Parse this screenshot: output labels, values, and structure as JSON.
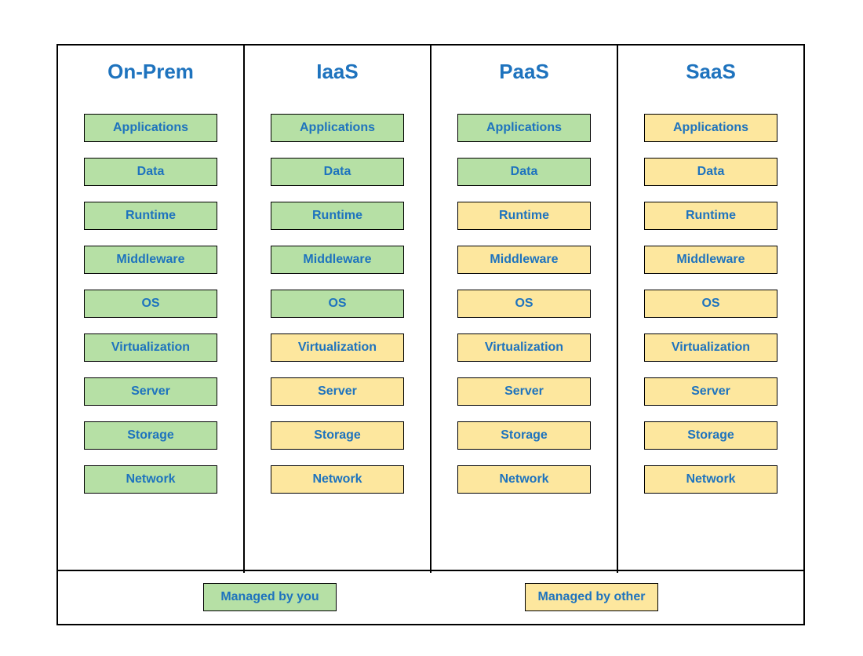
{
  "diagram": {
    "type": "infographic",
    "title_color": "#1e73be",
    "text_color": "#1e73be",
    "box_border_color": "#000000",
    "grid_border_color": "#000000",
    "background_color": "#ffffff",
    "title_fontsize": 26,
    "label_fontsize": 16,
    "colors": {
      "managed_by_you": "#b6e0a5",
      "managed_by_other": "#fde79e"
    },
    "layers": [
      "Applications",
      "Data",
      "Runtime",
      "Middleware",
      "OS",
      "Virtualization",
      "Server",
      "Storage",
      "Network"
    ],
    "columns": [
      {
        "title": "On-Prem",
        "ownership": [
          "you",
          "you",
          "you",
          "you",
          "you",
          "you",
          "you",
          "you",
          "you"
        ]
      },
      {
        "title": "IaaS",
        "ownership": [
          "you",
          "you",
          "you",
          "you",
          "you",
          "other",
          "other",
          "other",
          "other"
        ]
      },
      {
        "title": "PaaS",
        "ownership": [
          "you",
          "you",
          "other",
          "other",
          "other",
          "other",
          "other",
          "other",
          "other"
        ]
      },
      {
        "title": "SaaS",
        "ownership": [
          "other",
          "other",
          "other",
          "other",
          "other",
          "other",
          "other",
          "other",
          "other"
        ]
      }
    ],
    "legend": [
      {
        "label": "Managed by you",
        "key": "you"
      },
      {
        "label": "Managed by other",
        "key": "other"
      }
    ]
  }
}
